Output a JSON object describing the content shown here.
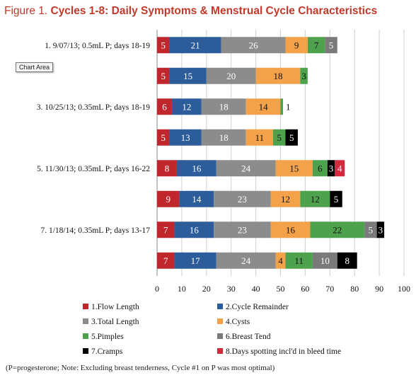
{
  "title": {
    "prefix": "Figure 1.",
    "bold": "Cycles 1-8: Daily Symptoms & Menstrual Cycle Characteristics"
  },
  "tooltip": "Chart Area",
  "footnote": "(P=progesterone; Note: Excluding breast tenderness, Cycle #1 on P was most optimal)",
  "chart_data": {
    "type": "bar",
    "orientation": "horizontal",
    "stacked": true,
    "categories": [
      "1. 9/07/13; 0.5mL P; days 18-19",
      "",
      "3. 10/25/13; 0.35mL P; days 18-19",
      "",
      "5. 11/30/13; 0.35mL P; days 16-22",
      "",
      "7. 1/18/14; 0.35mL P; days 13-17",
      ""
    ],
    "series": [
      {
        "name": "1.Flow Length",
        "color": "#c0272d",
        "values": [
          5,
          5,
          6,
          5,
          8,
          9,
          7,
          7
        ]
      },
      {
        "name": "2.Cycle Remainder",
        "color": "#2c5d9a",
        "values": [
          21,
          15,
          12,
          13,
          16,
          14,
          16,
          17
        ]
      },
      {
        "name": "3.Total Length",
        "color": "#8c8c8c",
        "values": [
          26,
          20,
          18,
          18,
          24,
          23,
          23,
          24
        ]
      },
      {
        "name": "4.Cysts",
        "color": "#f3a24a",
        "values": [
          9,
          18,
          14,
          11,
          15,
          12,
          16,
          4
        ]
      },
      {
        "name": "5.Pimples",
        "color": "#4ea14d",
        "values": [
          7,
          3,
          1,
          5,
          6,
          12,
          22,
          11
        ]
      },
      {
        "name": "6.Breast Tend",
        "color": "#7a7a7a",
        "values": [
          5,
          0,
          0,
          0,
          0,
          0,
          5,
          10
        ]
      },
      {
        "name": "7.Cramps",
        "color": "#000000",
        "values": [
          0,
          0,
          0,
          5,
          3,
          5,
          3,
          8
        ]
      },
      {
        "name": "8.Days spotting incl'd in bleed time",
        "color": "#d12a3d",
        "values": [
          0,
          0,
          0,
          0,
          4,
          0,
          0,
          0
        ]
      }
    ],
    "xlim": [
      0,
      100
    ],
    "xticks": [
      0,
      10,
      20,
      30,
      40,
      50,
      60,
      70,
      80,
      90,
      100
    ],
    "grid": true,
    "legend_position": "bottom"
  }
}
